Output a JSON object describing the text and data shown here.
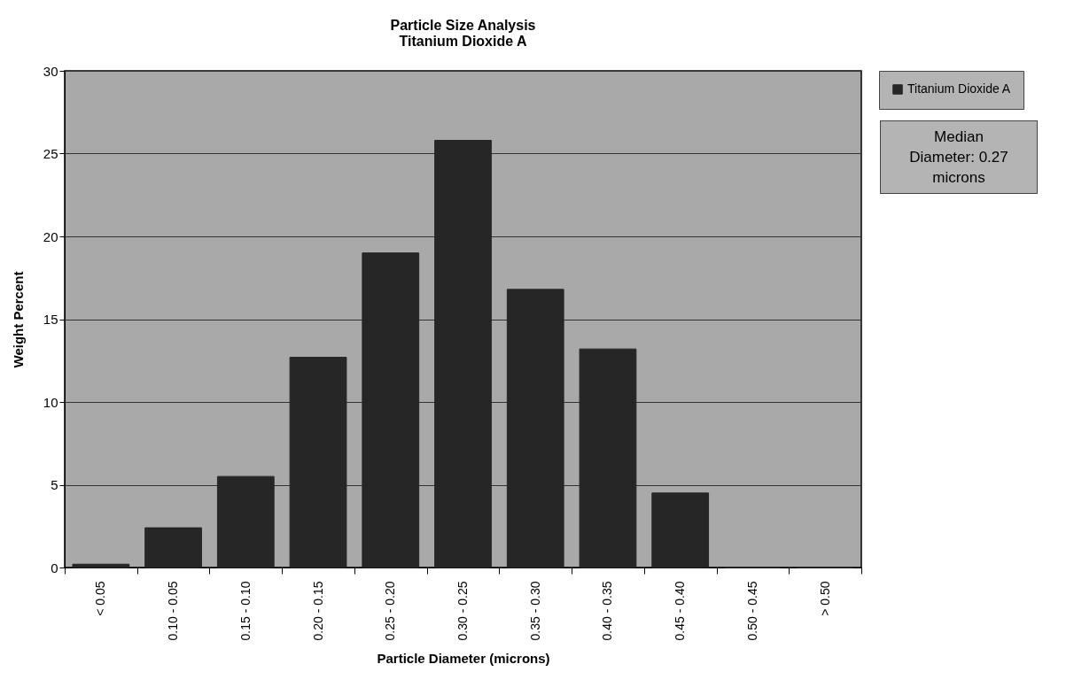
{
  "chart_data": {
    "type": "bar",
    "title": "Particle Size Analysis",
    "subtitle": "Titanium Dioxide A",
    "xlabel": "Particle Diameter (microns)",
    "ylabel": "Weight Percent",
    "categories": [
      "< 0.05",
      "0.10 - 0.05",
      "0.15 - 0.10",
      "0.20 - 0.15",
      "0.25 - 0.20",
      "0.30 - 0.25",
      "0.35 - 0.30",
      "0.40 - 0.35",
      "0.45 - 0.40",
      "0.50 - 0.45",
      "> 0.50"
    ],
    "series": [
      {
        "name": "Titanium Dioxide A",
        "color": "#262626",
        "values": [
          0.2,
          2.4,
          5.5,
          12.7,
          19.0,
          25.8,
          16.8,
          13.2,
          4.5,
          0,
          0
        ]
      }
    ],
    "ylim": [
      0,
      30
    ],
    "yticks": [
      0,
      5,
      10,
      15,
      20,
      25,
      30
    ],
    "grid": "y",
    "legend": "top right",
    "annotations": [
      "Median Diameter: 0.27 microns"
    ]
  }
}
